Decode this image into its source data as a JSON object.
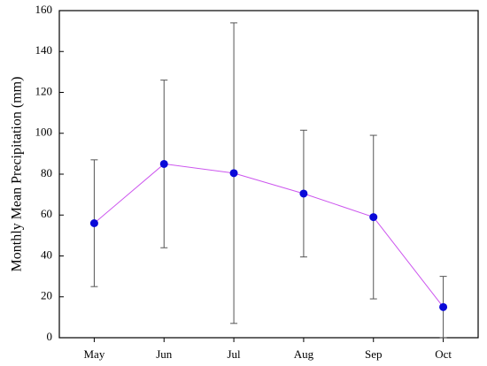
{
  "chart_data": {
    "type": "line",
    "y_label": "Monthly Mean Precipitation (mm)",
    "categories": [
      "May",
      "Jun",
      "Jul",
      "Aug",
      "Sep",
      "Oct"
    ],
    "series": [
      {
        "color": "#cc55ee",
        "marker_color": "#0a0ad8",
        "values": [
          56,
          85,
          80.5,
          70.5,
          59,
          15
        ],
        "errors": [
          31,
          41,
          73.5,
          31,
          40,
          15
        ]
      }
    ],
    "ylim": [
      0,
      160
    ],
    "yticks": [
      0,
      20,
      40,
      60,
      80,
      100,
      120,
      140,
      160
    ]
  }
}
